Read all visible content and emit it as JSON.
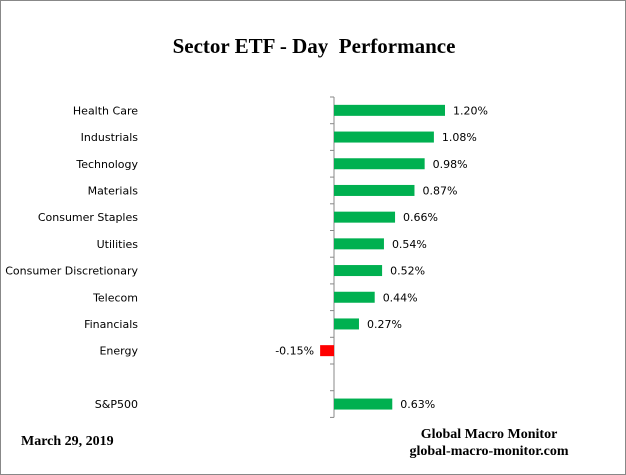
{
  "chart_data": {
    "type": "bar",
    "orientation": "horizontal",
    "title": "Sector ETF - Day  Performance",
    "categories": [
      "Health Care",
      "Industrials",
      "Technology",
      "Materials",
      "Consumer Staples",
      "Utilities",
      "Consumer Discretionary",
      "Telecom",
      "Financials",
      "Energy",
      "",
      "S&P500"
    ],
    "values": [
      1.2,
      1.08,
      0.98,
      0.87,
      0.66,
      0.54,
      0.52,
      0.44,
      0.27,
      -0.15,
      null,
      0.63
    ],
    "data_labels": [
      "1.20%",
      "1.08%",
      "0.98%",
      "0.87%",
      "0.66%",
      "0.54%",
      "0.52%",
      "0.44%",
      "0.27%",
      "-0.15%",
      "",
      "0.63%"
    ],
    "unit": "%",
    "xlim": [
      -1.2,
      1.5
    ],
    "grid": false,
    "legend": "none",
    "colors": {
      "positive": "#00b050",
      "negative": "#ff0000",
      "axis": "#888888"
    }
  },
  "footer": {
    "date": "March 29, 2019",
    "source_name": "Global Macro Monitor",
    "source_url": "global-macro-monitor.com"
  }
}
